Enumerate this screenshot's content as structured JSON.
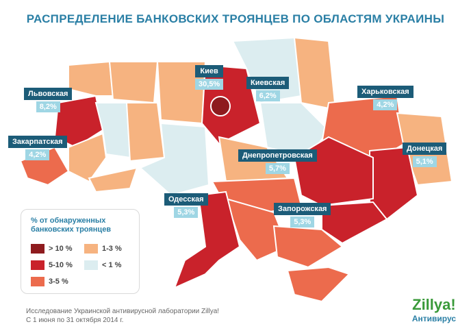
{
  "header": {
    "title": "РАСПРЕДЕЛЕНИЕ БАНКОВСКИХ ТРОЯНЦЕВ ПО ОБЛАСТЯМ УКРАИНЫ"
  },
  "callouts": [
    {
      "name": "Киев",
      "value": "30,5%"
    },
    {
      "name": "Киевская",
      "value": "6,2%"
    },
    {
      "name": "Львовская",
      "value": "8,2%"
    },
    {
      "name": "Закарпатская",
      "value": "4,2%"
    },
    {
      "name": "Харьковская",
      "value": "4,2%"
    },
    {
      "name": "Днепропетровская",
      "value": "5,7%"
    },
    {
      "name": "Донецкая",
      "value": "5,1%"
    },
    {
      "name": "Одесская",
      "value": "5,3%"
    },
    {
      "name": "Запорожская",
      "value": "5,3%"
    }
  ],
  "legend": {
    "title": "% от обнаруженных банковских троянцев",
    "items": [
      {
        "label": "> 10 %",
        "color": "#8e1b1e"
      },
      {
        "label": "5-10 %",
        "color": "#c9222b"
      },
      {
        "label": "3-5 %",
        "color": "#ec6b4d"
      },
      {
        "label": "1-3 %",
        "color": "#f6b380"
      },
      {
        "label": "< 1 %",
        "color": "#dcedf0"
      }
    ]
  },
  "footer": {
    "lines": [
      "Исследование Украинской антивирусной лаборатории Zillya!",
      "С 1 июня по 31 октября 2014 г."
    ]
  },
  "logo": {
    "brand": "Zillya!",
    "subtitle": "Антивирус"
  }
}
